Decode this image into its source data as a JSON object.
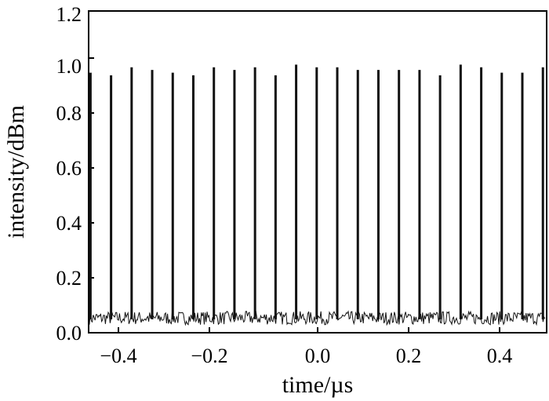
{
  "chart_data": {
    "type": "line",
    "title": "",
    "xlabel": "time/µs",
    "ylabel": "intensity/dBm",
    "xlim": [
      -0.49,
      0.49
    ],
    "ylim": [
      0.0,
      1.2
    ],
    "xticks": [
      -0.4,
      -0.2,
      0.0,
      0.2,
      0.4
    ],
    "xtick_labels": [
      "−0.4",
      "−0.2",
      "0.0",
      "0.2",
      "0.4"
    ],
    "yticks": [
      0.0,
      0.2,
      0.4,
      0.6,
      0.8,
      1.0,
      1.2
    ],
    "ytick_labels": [
      "0.0",
      "0.2",
      "0.4",
      "0.6",
      "0.8",
      "1.0",
      "1.2"
    ],
    "grid": false,
    "legend": "none",
    "baseline_noise_range": [
      0.03,
      0.08
    ],
    "pulses": {
      "x": [
        -0.486,
        -0.442,
        -0.398,
        -0.354,
        -0.31,
        -0.266,
        -0.222,
        -0.178,
        -0.134,
        -0.09,
        -0.046,
        -0.002,
        0.042,
        0.086,
        0.13,
        0.174,
        0.218,
        0.262,
        0.306,
        0.35,
        0.394,
        0.438,
        0.482
      ],
      "y": [
        0.97,
        0.96,
        0.99,
        0.98,
        0.97,
        0.96,
        0.99,
        0.98,
        0.99,
        0.96,
        1.0,
        0.99,
        0.99,
        0.98,
        0.98,
        0.98,
        0.98,
        0.96,
        1.0,
        0.99,
        0.97,
        0.97,
        0.99
      ]
    }
  }
}
